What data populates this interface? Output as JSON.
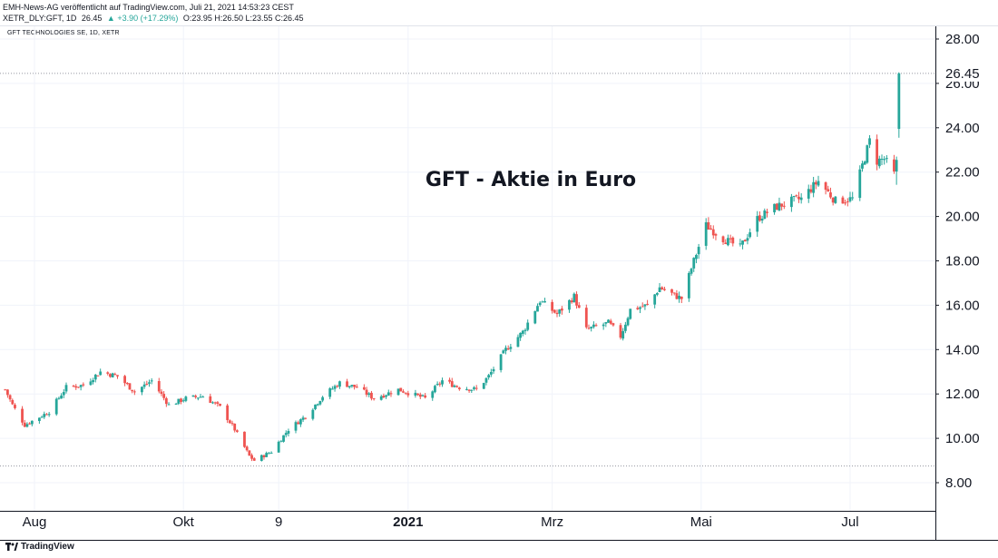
{
  "header": {
    "published": "EMH-News-AG veröffentlicht auf TradingView.com, Juli 21, 2021 14:53:23 CEST",
    "ticker": "XETR_DLY:GFT, 1D",
    "last": "26.45",
    "change": "▲ +3.90 (+17.29%)",
    "ohlc": "O:23.95 H:26.50 L:23.55 C:26.45"
  },
  "symbol_label": "GFT TECHNOLOGIES SE, 1D, XETR",
  "footer": {
    "brand": "TradingView",
    "logo_icon": "tradingview-logo-icon"
  },
  "colors": {
    "up": "#26a69a",
    "down": "#ef5350",
    "grid": "#f0f3fa",
    "axis": "#131722"
  },
  "chart_data": {
    "type": "candlestick",
    "title": "GFT - Aktie in Euro",
    "xlabel": "",
    "ylabel": "",
    "ylim": [
      7.0,
      28.8
    ],
    "yticks": [
      "8.00",
      "10.00",
      "12.00",
      "14.00",
      "16.00",
      "18.00",
      "20.00",
      "22.00",
      "24.00",
      "26.00",
      "28.00"
    ],
    "xticks": [
      {
        "label": "Aug",
        "date": "2020-08-01",
        "bold": false
      },
      {
        "label": "Okt",
        "date": "2020-10-01",
        "bold": false
      },
      {
        "label": "9",
        "date": "2020-11-09",
        "bold": false
      },
      {
        "label": "2021",
        "date": "2021-01-01",
        "bold": true
      },
      {
        "label": "Mrz",
        "date": "2021-03-01",
        "bold": false
      },
      {
        "label": "Mai",
        "date": "2021-05-01",
        "bold": false
      },
      {
        "label": "Jul",
        "date": "2021-07-01",
        "bold": false
      }
    ],
    "reference_lines": [
      26.45,
      8.75
    ],
    "grid": true,
    "legend": "none",
    "anchors": [
      {
        "date": "2020-07-20",
        "close": 12.2
      },
      {
        "date": "2020-07-23",
        "close": 11.5
      },
      {
        "date": "2020-07-28",
        "close": 10.6
      },
      {
        "date": "2020-08-07",
        "close": 11.2
      },
      {
        "date": "2020-08-14",
        "close": 12.3
      },
      {
        "date": "2020-08-21",
        "close": 12.4
      },
      {
        "date": "2020-08-28",
        "close": 13.0
      },
      {
        "date": "2020-09-04",
        "close": 12.8
      },
      {
        "date": "2020-09-11",
        "close": 12.1
      },
      {
        "date": "2020-09-18",
        "close": 12.6
      },
      {
        "date": "2020-09-25",
        "close": 11.5
      },
      {
        "date": "2020-10-02",
        "close": 11.8
      },
      {
        "date": "2020-10-09",
        "close": 11.9
      },
      {
        "date": "2020-10-16",
        "close": 11.4
      },
      {
        "date": "2020-10-22",
        "close": 10.4
      },
      {
        "date": "2020-10-28",
        "close": 9.2
      },
      {
        "date": "2020-10-30",
        "close": 9.0
      },
      {
        "date": "2020-11-06",
        "close": 9.4
      },
      {
        "date": "2020-11-13",
        "close": 10.4
      },
      {
        "date": "2020-11-20",
        "close": 11.0
      },
      {
        "date": "2020-11-27",
        "close": 11.9
      },
      {
        "date": "2020-12-04",
        "close": 12.5
      },
      {
        "date": "2020-12-11",
        "close": 12.3
      },
      {
        "date": "2020-12-18",
        "close": 11.8
      },
      {
        "date": "2020-12-28",
        "close": 12.2
      },
      {
        "date": "2021-01-08",
        "close": 11.8
      },
      {
        "date": "2021-01-15",
        "close": 12.6
      },
      {
        "date": "2021-01-22",
        "close": 12.3
      },
      {
        "date": "2021-01-29",
        "close": 12.2
      },
      {
        "date": "2021-02-03",
        "close": 12.8
      },
      {
        "date": "2021-02-10",
        "close": 14.0
      },
      {
        "date": "2021-02-17",
        "close": 14.8
      },
      {
        "date": "2021-02-24",
        "close": 16.2
      },
      {
        "date": "2021-03-03",
        "close": 15.6
      },
      {
        "date": "2021-03-10",
        "close": 16.4
      },
      {
        "date": "2021-03-15",
        "close": 14.9
      },
      {
        "date": "2021-03-24",
        "close": 15.2
      },
      {
        "date": "2021-03-29",
        "close": 14.6
      },
      {
        "date": "2021-04-02",
        "close": 15.8
      },
      {
        "date": "2021-04-09",
        "close": 16.0
      },
      {
        "date": "2021-04-14",
        "close": 16.8
      },
      {
        "date": "2021-04-21",
        "close": 16.4
      },
      {
        "date": "2021-04-23",
        "close": 16.3
      },
      {
        "date": "2021-04-28",
        "close": 18.0
      },
      {
        "date": "2021-05-03",
        "close": 19.6
      },
      {
        "date": "2021-05-10",
        "close": 19.0
      },
      {
        "date": "2021-05-17",
        "close": 18.6
      },
      {
        "date": "2021-05-24",
        "close": 19.9
      },
      {
        "date": "2021-05-31",
        "close": 20.4
      },
      {
        "date": "2021-06-07",
        "close": 20.7
      },
      {
        "date": "2021-06-11",
        "close": 20.8
      },
      {
        "date": "2021-06-18",
        "close": 21.6
      },
      {
        "date": "2021-06-25",
        "close": 20.7
      },
      {
        "date": "2021-07-02",
        "close": 20.8
      },
      {
        "date": "2021-07-06",
        "close": 22.3
      },
      {
        "date": "2021-07-09",
        "close": 23.4
      },
      {
        "date": "2021-07-12",
        "close": 22.5
      },
      {
        "date": "2021-07-15",
        "close": 22.6
      },
      {
        "date": "2021-07-19",
        "close": 21.9
      },
      {
        "date": "2021-07-20",
        "close": 22.55
      }
    ],
    "last_candle": {
      "date": "2021-07-21",
      "open": 23.95,
      "high": 26.5,
      "low": 23.55,
      "close": 26.45
    }
  }
}
